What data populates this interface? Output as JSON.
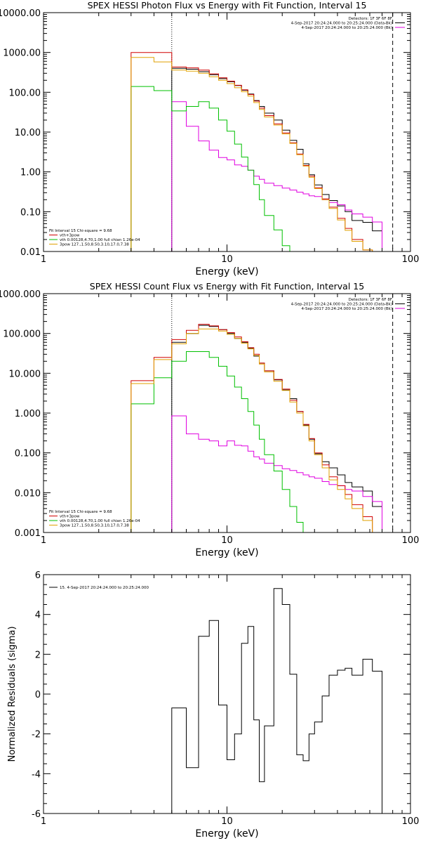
{
  "chart_data": [
    {
      "type": "line",
      "title": "SPEX HESSI Photon Flux vs Energy with Fit Function, Interval 15",
      "xlabel": "Energy (keV)",
      "ylabel": "",
      "xscale": "log",
      "yscale": "log",
      "xlim": [
        1,
        100
      ],
      "ylim": [
        0.01,
        10000
      ],
      "x_tick_labels": [
        "1",
        "10",
        "100"
      ],
      "y_tick_labels": [
        "10000.00",
        "1000.00",
        "100.00",
        "10.00",
        "1.00",
        "0.10",
        "0.01"
      ],
      "vlines_dotted": [
        5.0
      ],
      "vlines_dashed": [
        80.0
      ],
      "legend_right": [
        {
          "text": "Detectors: 1F 3F 6F 8F",
          "color": ""
        },
        {
          "text": "4-Sep-2017 20:24:24.000 to 20:25:24.000 (Data-Bk)",
          "color": "#000000"
        },
        {
          "text": "4-Sep-2017 20:24:24.000 to 20:25:24.000 (Bk)",
          "color": "#e000e0"
        }
      ],
      "legend_left": [
        {
          "text": "Fit Interval 15   Chi-square = 9.68",
          "color": ""
        },
        {
          "text": "vth+3pow",
          "color": "#d00000"
        },
        {
          "text": "vth 0.00128,4.70,1.00  full chian 1.26e-04",
          "color": "#00c000"
        },
        {
          "text": "3pow 127.,1.50,8.50,3.10,17.0,7.38",
          "color": "#e0a000"
        }
      ],
      "edges": [
        3.0,
        4.0,
        5.0,
        6.0,
        7.0,
        8.0,
        9.0,
        10.0,
        11.0,
        12.0,
        13.0,
        14.0,
        15.0,
        16.0,
        18.0,
        20.0,
        22.0,
        24.0,
        26.0,
        28.0,
        30.0,
        33.0,
        36.0,
        40.0,
        44.0,
        48.0,
        55.0,
        62.0,
        70.0,
        80.0
      ],
      "series": [
        {
          "name": "",
          "color": "#000000",
          "start": 5.0,
          "values": [
            400,
            380,
            330,
            275,
            220,
            185,
            148,
            112,
            90,
            62,
            44,
            30,
            20,
            11.2,
            6.2,
            3.7,
            1.6,
            0.85,
            0.47,
            0.27,
            0.19,
            0.14,
            0.1,
            0.06,
            0.054,
            0.033
          ]
        },
        {
          "name": "",
          "color": "#e000e0",
          "start": 5.0,
          "values": [
            58,
            14,
            6,
            3.5,
            2.3,
            2.0,
            1.5,
            1.38,
            1.1,
            0.78,
            0.65,
            0.52,
            0.45,
            0.39,
            0.35,
            0.31,
            0.28,
            0.25,
            0.24,
            0.2,
            0.17,
            0.15,
            0.11,
            0.088,
            0.073,
            0.055
          ]
        },
        {
          "name": "",
          "color": "#d00000",
          "start": 3.0,
          "values": [
            1000,
            1000,
            430,
            410,
            360,
            290,
            230,
            190,
            150,
            115,
            88,
            60,
            40,
            26,
            16,
            9.5,
            5.4,
            2.8,
            1.45,
            0.78,
            0.4,
            0.21,
            0.13,
            0.068,
            0.038,
            0.02,
            0.011
          ]
        },
        {
          "name": "",
          "color": "#00c000",
          "start": 3.0,
          "values": [
            140,
            110,
            34,
            44,
            58,
            40,
            20,
            10.5,
            5.0,
            2.35,
            1.1,
            0.48,
            0.2,
            0.08,
            0.035,
            0.014
          ]
        },
        {
          "name": "",
          "color": "#e0a000",
          "start": 3.0,
          "values": [
            750,
            580,
            360,
            340,
            300,
            245,
            200,
            165,
            130,
            103,
            80,
            55,
            37,
            24,
            15,
            9,
            5.2,
            2.7,
            1.4,
            0.73,
            0.38,
            0.2,
            0.12,
            0.062,
            0.034,
            0.018,
            0.011
          ]
        }
      ]
    },
    {
      "type": "line",
      "title": "SPEX HESSI Count Flux vs Energy with Fit Function, Interval 15",
      "xlabel": "Energy (keV)",
      "ylabel": "",
      "xscale": "log",
      "yscale": "log",
      "xlim": [
        1,
        100
      ],
      "ylim": [
        0.001,
        1000
      ],
      "x_tick_labels": [
        "1",
        "10",
        "100"
      ],
      "y_tick_labels": [
        "1000.000",
        "100.000",
        "10.000",
        "1.000",
        "0.100",
        "0.010",
        "0.001"
      ],
      "vlines_dotted": [
        5.0
      ],
      "vlines_dashed": [
        80.0
      ],
      "legend_right": [
        {
          "text": "Detectors: 1F 3F 6F 8F",
          "color": ""
        },
        {
          "text": "4-Sep-2017 20:24:24.000 to 20:25:24.000 (Data-Bk)",
          "color": "#000000"
        },
        {
          "text": "4-Sep-2017 20:24:24.000 to 20:25:24.000 (Bk)",
          "color": "#e000e0"
        }
      ],
      "legend_left": [
        {
          "text": "Fit Interval 15   Chi-square = 9.68",
          "color": ""
        },
        {
          "text": "vth+3pow",
          "color": "#d00000"
        },
        {
          "text": "vth 0.00128,4.70,1.00  full chian 1.26e-04",
          "color": "#00c000"
        },
        {
          "text": "3pow 127.,1.50,8.50,3.10,17.0,7.38",
          "color": "#e0a000"
        }
      ],
      "edges": [
        3.0,
        4.0,
        5.0,
        6.0,
        7.0,
        8.0,
        9.0,
        10.0,
        11.0,
        12.0,
        13.0,
        14.0,
        15.0,
        16.0,
        18.0,
        20.0,
        22.0,
        24.0,
        26.0,
        28.0,
        30.0,
        33.0,
        36.0,
        40.0,
        44.0,
        48.0,
        55.0,
        62.0,
        70.0,
        80.0
      ],
      "series": [
        {
          "name": "",
          "color": "#000000",
          "start": 5.0,
          "values": [
            60,
            100,
            160,
            150,
            125,
            100,
            75,
            60,
            42,
            27,
            18,
            11.5,
            6.8,
            3.8,
            2.3,
            1.1,
            0.5,
            0.22,
            0.095,
            0.06,
            0.042,
            0.028,
            0.018,
            0.014,
            0.011,
            0.0045
          ]
        },
        {
          "name": "",
          "color": "#e000e0",
          "start": 5.0,
          "values": [
            0.85,
            0.3,
            0.22,
            0.2,
            0.15,
            0.2,
            0.155,
            0.15,
            0.11,
            0.08,
            0.07,
            0.055,
            0.048,
            0.04,
            0.036,
            0.032,
            0.028,
            0.025,
            0.023,
            0.019,
            0.016,
            0.015,
            0.012,
            0.011,
            0.008,
            0.006
          ]
        },
        {
          "name": "",
          "color": "#d00000",
          "start": 3.0,
          "values": [
            6.5,
            25,
            70,
            120,
            170,
            155,
            125,
            105,
            82,
            62,
            44,
            30,
            18,
            11.5,
            7.0,
            4.0,
            2.1,
            1.1,
            0.52,
            0.23,
            0.1,
            0.05,
            0.025,
            0.015,
            0.009,
            0.005,
            0.0025
          ]
        },
        {
          "name": "",
          "color": "#00c000",
          "start": 3.0,
          "values": [
            1.7,
            7.7,
            20,
            35,
            35,
            25,
            15,
            8.5,
            4.5,
            2.3,
            1.1,
            0.5,
            0.22,
            0.09,
            0.035,
            0.012,
            0.0045,
            0.0018
          ]
        },
        {
          "name": "",
          "color": "#e0a000",
          "start": 3.0,
          "values": [
            5.5,
            22,
            55,
            100,
            130,
            130,
            115,
            95,
            75,
            57,
            41,
            28,
            17,
            10.8,
            6.3,
            3.7,
            1.9,
            1.0,
            0.48,
            0.2,
            0.09,
            0.042,
            0.021,
            0.012,
            0.007,
            0.004,
            0.002
          ]
        }
      ]
    },
    {
      "type": "line",
      "title": "",
      "xlabel": "Energy (keV)",
      "ylabel": "Normalized Residuals (sigma)",
      "xscale": "log",
      "yscale": "linear",
      "xlim": [
        1,
        100
      ],
      "ylim": [
        -6,
        6
      ],
      "x_tick_labels": [
        "1",
        "10",
        "100"
      ],
      "y_tick_labels": [
        "6",
        "4",
        "2",
        "0",
        "-2",
        "-4",
        "-6"
      ],
      "legend_left": [
        {
          "text": "15.  4-Sep-2017 20:24:24.000 to 20:25:24.000",
          "color": "#000000"
        }
      ],
      "edges": [
        5.0,
        6.0,
        7.0,
        8.0,
        9.0,
        10.0,
        11.0,
        12.0,
        13.0,
        14.0,
        15.0,
        16.0,
        18.0,
        20.0,
        22.0,
        24.0,
        26.0,
        28.0,
        30.0,
        33.0,
        36.0,
        40.0,
        44.0,
        48.0,
        55.0,
        62.0,
        70.0,
        80.0
      ],
      "series": [
        {
          "name": "15.  4-Sep-2017 20:24:24.000 to 20:25:24.000",
          "color": "#000000",
          "start": 5.0,
          "values": [
            -0.7,
            -3.7,
            2.9,
            3.7,
            -0.55,
            -3.3,
            -2.0,
            2.55,
            3.4,
            -1.3,
            -4.4,
            -1.6,
            5.3,
            4.5,
            1.0,
            -3.05,
            -3.35,
            -2.0,
            -1.4,
            -0.1,
            0.95,
            1.2,
            1.3,
            0.95,
            1.75,
            1.15
          ]
        }
      ]
    }
  ]
}
